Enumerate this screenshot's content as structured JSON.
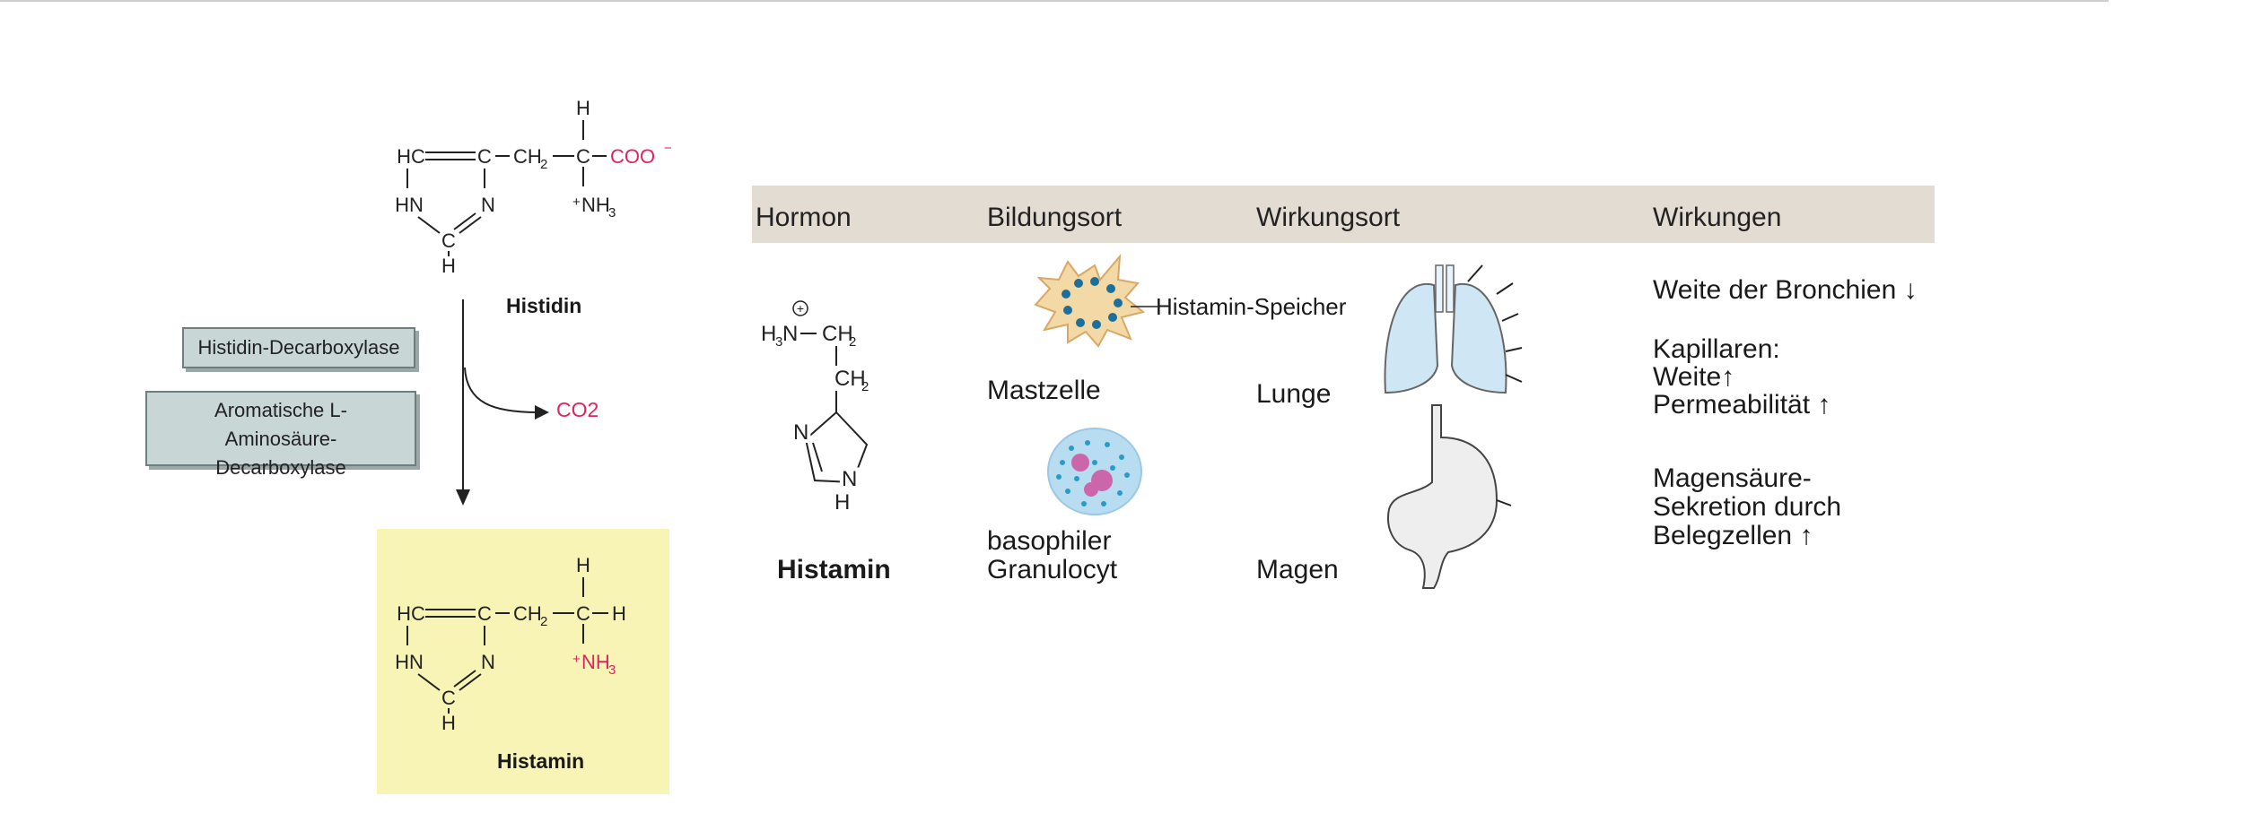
{
  "reaction": {
    "substrate_label": "Histidin",
    "product_label": "Histamin",
    "enzymes": [
      "Histidin-Decarboxylase",
      "Aromatische L-Aminosäure-Decarboxylase"
    ],
    "byproduct": "CO2"
  },
  "table": {
    "headers": [
      "Hormon",
      "Bildungsort",
      "Wirkungsort",
      "Wirkungen"
    ],
    "hormone_name": "Histamin",
    "mastzelle": {
      "label": "Mastzelle",
      "annotation": "Histamin-Speicher"
    },
    "granulocyt": {
      "label_line1": "basophiler",
      "label_line2": "Granulocyt"
    },
    "organs": [
      "Lunge",
      "Magen"
    ],
    "effects": {
      "bronchien": "Weite der Bronchien",
      "kapillaren_title": "Kapillaren:",
      "kapillaren_weite": "Weite",
      "kapillaren_perm": "Permeabilität",
      "magen_line1": "Magensäure-",
      "magen_line2": "Sekretion durch",
      "magen_line3": "Belegzellen"
    }
  },
  "colors": {
    "header_bg": "#e2dcd3",
    "product_bg": "#f8f4b6",
    "highlight": "#e0245e",
    "enzyme_bg": "#c8d6d6",
    "organ_fill": "#cfe6f5"
  }
}
